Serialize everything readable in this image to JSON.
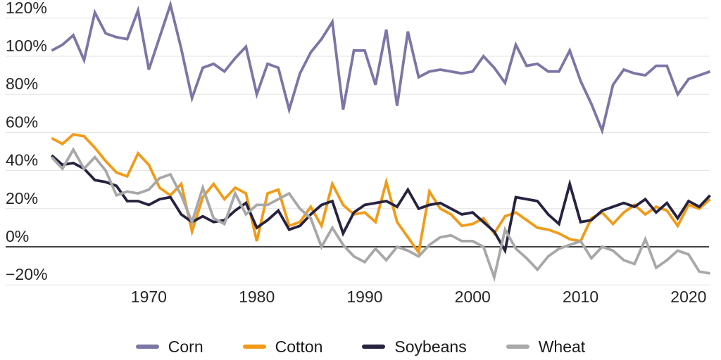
{
  "chart_data": {
    "type": "line",
    "title": "",
    "xlabel": "",
    "ylabel": "",
    "grid": "horizontal",
    "legend_position": "bottom",
    "x_ticks": [
      "1970",
      "1980",
      "1990",
      "2000",
      "2010",
      "2020"
    ],
    "y_ticks": [
      {
        "value": 120,
        "label": "120%"
      },
      {
        "value": 100,
        "label": "100%"
      },
      {
        "value": 80,
        "label": "80%"
      },
      {
        "value": 60,
        "label": "60%"
      },
      {
        "value": 40,
        "label": "40%"
      },
      {
        "value": 20,
        "label": "20%"
      },
      {
        "value": 0,
        "label": "0%"
      },
      {
        "value": -20,
        "label": "−20%"
      }
    ],
    "x_range": [
      1961,
      2022
    ],
    "ylim": [
      -20,
      120
    ],
    "years": [
      1961,
      1962,
      1963,
      1964,
      1965,
      1966,
      1967,
      1968,
      1969,
      1970,
      1971,
      1972,
      1973,
      1974,
      1975,
      1976,
      1977,
      1978,
      1979,
      1980,
      1981,
      1982,
      1983,
      1984,
      1985,
      1986,
      1987,
      1988,
      1989,
      1990,
      1991,
      1992,
      1993,
      1994,
      1995,
      1996,
      1997,
      1998,
      1999,
      2000,
      2001,
      2002,
      2003,
      2004,
      2005,
      2006,
      2007,
      2008,
      2009,
      2010,
      2011,
      2012,
      2013,
      2014,
      2015,
      2016,
      2017,
      2018,
      2019,
      2020,
      2021,
      2022
    ],
    "series": [
      {
        "name": "Corn",
        "color": "#7c76a6",
        "values": [
          103,
          106,
          111,
          98,
          123,
          112,
          110,
          109,
          124,
          93,
          110,
          127,
          104,
          78,
          94,
          96,
          92,
          99,
          105,
          80,
          96,
          94,
          72,
          91,
          102,
          109,
          118,
          72,
          103,
          103,
          85,
          114,
          74,
          113,
          89,
          92,
          93,
          92,
          91,
          92,
          100,
          94,
          86,
          106,
          95,
          96,
          92,
          92,
          103,
          87,
          75,
          61,
          85,
          93,
          91,
          90,
          95,
          95,
          80,
          88,
          90,
          92
        ]
      },
      {
        "name": "Cotton",
        "color": "#f09c1a",
        "values": [
          57,
          54,
          59,
          58,
          52,
          45,
          39,
          37,
          49,
          43,
          31,
          27,
          33,
          8,
          26,
          33,
          25,
          31,
          28,
          3,
          28,
          30,
          11,
          13,
          21,
          11,
          33,
          22,
          17,
          18,
          13,
          34,
          13,
          5,
          -3,
          29,
          20,
          17,
          11,
          12,
          15,
          7,
          16,
          18,
          14,
          10,
          9,
          7,
          4,
          3,
          15,
          18,
          12,
          18,
          22,
          17,
          21,
          19,
          11,
          22,
          20,
          25
        ]
      },
      {
        "name": "Soybeans",
        "color": "#262240",
        "values": [
          48,
          43,
          44,
          41,
          35,
          34,
          32,
          24,
          24,
          22,
          25,
          26,
          17,
          13,
          16,
          13,
          14,
          19,
          23,
          10,
          14,
          19,
          9,
          11,
          17,
          22,
          24,
          7,
          18,
          22,
          23,
          24,
          21,
          30,
          20,
          22,
          23,
          20,
          17,
          18,
          13,
          8,
          -2,
          26,
          25,
          24,
          17,
          12,
          33,
          13,
          14,
          19,
          21,
          23,
          21,
          25,
          18,
          23,
          15,
          24,
          21,
          27
        ]
      },
      {
        "name": "Wheat",
        "color": "#a9a8a8",
        "values": [
          47,
          41,
          51,
          41,
          47,
          40,
          27,
          29,
          28,
          30,
          36,
          38,
          27,
          13,
          31,
          15,
          12,
          28,
          17,
          22,
          22,
          25,
          28,
          20,
          15,
          0,
          10,
          1,
          -5,
          -8,
          -1,
          -7,
          0,
          -2,
          -5,
          1,
          5,
          6,
          3,
          3,
          0,
          -16,
          9,
          -1,
          -6,
          -12,
          -5,
          -1,
          1,
          3,
          -6,
          0,
          -2,
          -7,
          -9,
          4,
          -11,
          -7,
          -2,
          -4,
          -13,
          -14
        ]
      }
    ]
  },
  "styles": {
    "grid_color": "#e3e3e3",
    "zero_axis_color": "#424242",
    "text_color": "#262626",
    "background": "#ffffff"
  },
  "legend": {
    "items": [
      {
        "label": "Corn"
      },
      {
        "label": "Cotton"
      },
      {
        "label": "Soybeans"
      },
      {
        "label": "Wheat"
      }
    ]
  }
}
